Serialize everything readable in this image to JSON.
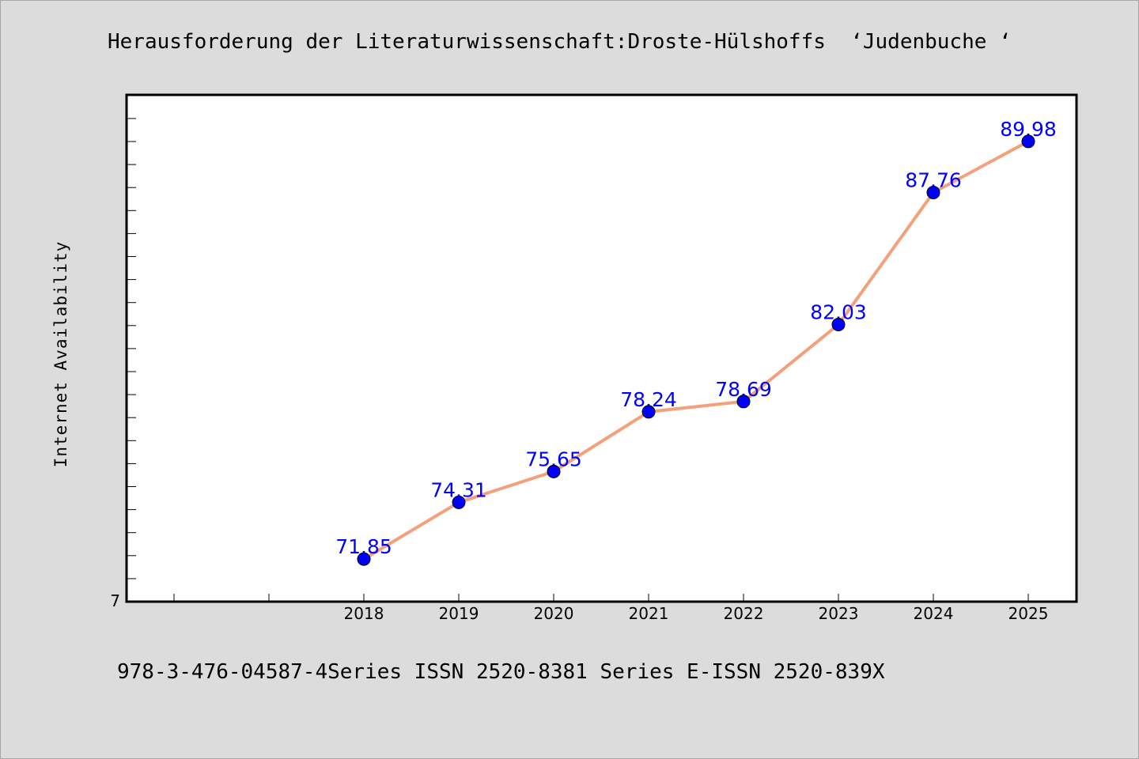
{
  "title": "Herausforderung der Literaturwissenschaft:Droste-Hülshoffs  ‘Judenbuche ‘",
  "footer": "978-3-476-04587-4Series ISSN 2520-8381 Series E-ISSN 2520-839X",
  "colors": {
    "background": "#dcdcdc",
    "plot_background": "#ffffff",
    "line": "#f4a07a",
    "marker": "#0000ff",
    "data_label": "#0000ff"
  },
  "chart_data": {
    "type": "line",
    "title": "Herausforderung der Literaturwissenschaft:Droste-Hülshoffs  ‘Judenbuche ‘",
    "xlabel": "",
    "ylabel": "Internet Availability",
    "categories": [
      "2018",
      "2019",
      "2020",
      "2021",
      "2022",
      "2023",
      "2024",
      "2025"
    ],
    "series": [
      {
        "values": [
          71.85,
          74.31,
          75.65,
          78.24,
          78.69,
          82.03,
          87.76,
          89.98
        ]
      }
    ],
    "data_labels": [
      "71.85",
      "74.31",
      "75.65",
      "78.24",
      "78.69",
      "82.03",
      "87.76",
      "89.98"
    ],
    "y_tick_labels": [
      "7"
    ],
    "ylim": [
      70,
      92
    ],
    "grid": false,
    "legend": "none"
  }
}
